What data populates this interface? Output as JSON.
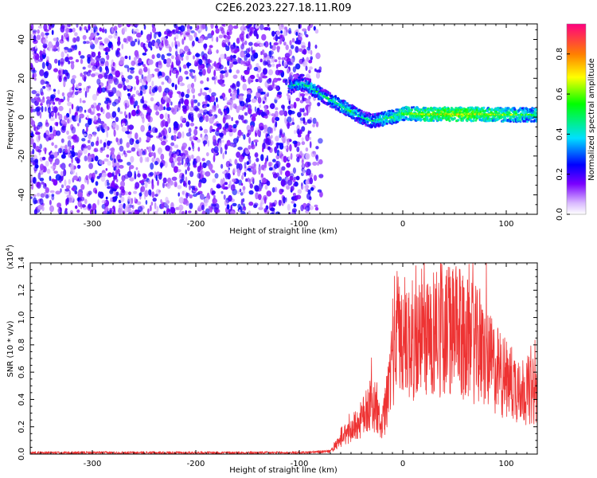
{
  "figure": {
    "title": "C2E6.2023.227.18.11.R09"
  },
  "chart_data": [
    {
      "type": "heatmap",
      "xlabel": "Height of straight line (km)",
      "ylabel": "Frequency (Hz)",
      "xlim": [
        -360,
        130
      ],
      "ylim": [
        -50,
        48
      ],
      "xticks": [
        -300,
        -200,
        -100,
        0,
        100
      ],
      "yticks": [
        -40,
        -20,
        0,
        20,
        40
      ],
      "colorbar": {
        "label": "Normalized spectral amplitude",
        "range": [
          0.0,
          0.95
        ],
        "ticks": [
          "0.0",
          "0.2",
          "0.4",
          "0.6",
          "0.8"
        ],
        "colors": [
          "#ffffff",
          "#d8b8ff",
          "#7a00ff",
          "#0000ff",
          "#00e0ff",
          "#00ff00",
          "#ffff00",
          "#ff8000",
          "#ff0080"
        ]
      },
      "noise_region": {
        "x": [
          -360,
          -88
        ],
        "y": [
          -50,
          48
        ],
        "amplitude": [
          0.05,
          0.25
        ]
      },
      "signal_ridge": {
        "x": [
          -110,
          -100,
          -90,
          -80,
          -70,
          -60,
          -50,
          -40,
          -30,
          -20,
          -10,
          0,
          20,
          40,
          60,
          80,
          100,
          130
        ],
        "y": [
          16,
          17,
          16,
          12,
          9,
          6,
          3,
          0,
          -2,
          -1,
          0,
          2,
          1.5,
          1.5,
          1.5,
          1.5,
          1.2,
          1.2
        ],
        "amplitude": [
          0.3,
          0.35,
          0.4,
          0.38,
          0.38,
          0.4,
          0.42,
          0.35,
          0.35,
          0.42,
          0.45,
          0.5,
          0.55,
          0.6,
          0.6,
          0.55,
          0.5,
          0.45
        ]
      }
    },
    {
      "type": "line",
      "xlabel": "Height of straight line (km)",
      "ylabel": "SNR (10 * v/v)",
      "scale_label": "(x10",
      "scale_exp": "4",
      "scale_close": ")",
      "xlim": [
        -360,
        130
      ],
      "ylim": [
        0,
        1.4
      ],
      "xticks": [
        -300,
        -200,
        -100,
        0,
        100
      ],
      "yticks": [
        "0.0",
        "0.2",
        "0.4",
        "0.6",
        "0.8",
        "1.0",
        "1.2",
        "1.4"
      ],
      "color": "#ee3333",
      "series": [
        {
          "x": [
            -360,
            -100,
            -70,
            -60,
            -50,
            -40,
            -30,
            -20,
            -15,
            -10,
            -5,
            0,
            10,
            20,
            30,
            40,
            50,
            60,
            70,
            80,
            90,
            100,
            110,
            120,
            130
          ],
          "y": [
            0.01,
            0.01,
            0.02,
            0.1,
            0.18,
            0.25,
            0.4,
            0.2,
            0.4,
            0.75,
            0.9,
            0.85,
            0.82,
            0.85,
            0.9,
            0.92,
            0.9,
            0.85,
            0.8,
            0.7,
            0.62,
            0.55,
            0.5,
            0.47,
            0.44
          ]
        }
      ]
    }
  ]
}
